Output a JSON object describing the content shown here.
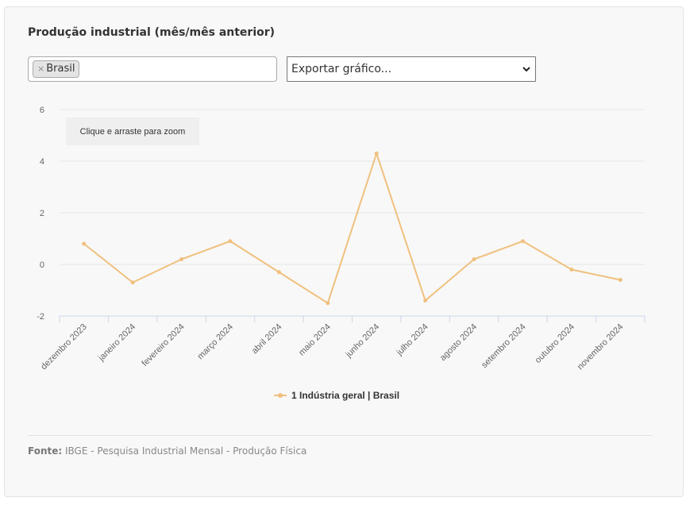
{
  "panel": {
    "title": "Produção industrial (mês/mês anterior)",
    "locality_filter": {
      "remove_symbol": "×",
      "selected": "Brasil"
    },
    "export_select": {
      "value": "Exportar gráfico..."
    },
    "zoom_hint": "Clique e arraste para zoom",
    "source_label": "Fonte:",
    "source_text": "IBGE - Pesquisa Industrial Mensal - Produção Física"
  },
  "chart_data": {
    "type": "line",
    "categories": [
      "dezembro 2023",
      "janeiro 2024",
      "fevereiro 2024",
      "março 2024",
      "abril 2024",
      "maio 2024",
      "junho 2024",
      "julho 2024",
      "agosto 2024",
      "setembro 2024",
      "outubro 2024",
      "novembro 2024"
    ],
    "series": [
      {
        "name": "1 Indústria geral | Brasil",
        "color": "#f0c07e",
        "values": [
          0.8,
          -0.7,
          0.2,
          0.9,
          -0.3,
          -1.5,
          4.3,
          -1.4,
          0.2,
          0.9,
          -0.2,
          -0.6
        ]
      }
    ],
    "yticks": [
      "6",
      "4",
      "2",
      "0",
      "-2"
    ],
    "ylim": [
      -2,
      6
    ],
    "grid": true,
    "legend": "bottom-center",
    "colors": {
      "line": "#f0c07e",
      "grid": "#e6e6e6",
      "axis": "#ccd6eb"
    }
  }
}
